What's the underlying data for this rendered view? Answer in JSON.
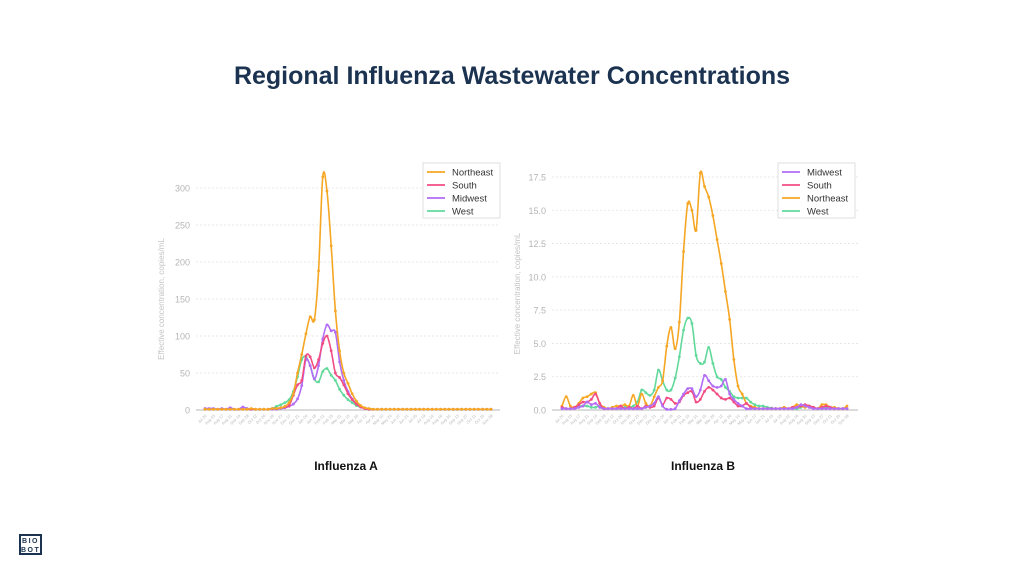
{
  "page_title": "Regional Influenza Wastewater Concentrations",
  "logo": {
    "line1": "BIO",
    "line2": "BOT"
  },
  "colors": {
    "Northeast": "#f5a623",
    "South": "#f24d83",
    "Midwest": "#b36cf5",
    "West": "#62d99b"
  },
  "chart_data": [
    {
      "type": "line",
      "title": "Influenza A",
      "xlabel": "",
      "ylabel": "Effective concentration, copies/mL",
      "ylim": [
        0,
        300
      ],
      "yticks": [
        0,
        50,
        100,
        150,
        200,
        250,
        300
      ],
      "grid": true,
      "legend_position": "top-right",
      "xticks": [
        "Jul 20",
        "Aug 03",
        "Aug 17",
        "Aug 31",
        "Sep 14",
        "Sep 28",
        "Oct 12",
        "Oct 26",
        "Nov 09",
        "Nov 23",
        "Dec 07",
        "Dec 21",
        "Jan 04",
        "Jan 18",
        "Feb 01",
        "Feb 15",
        "Mar 01",
        "Mar 15",
        "Mar 29",
        "Apr 12",
        "Apr 26",
        "May 10",
        "May 24",
        "Jun 07",
        "Jun 21",
        "Jul 05",
        "Jul 19",
        "Aug 02",
        "Aug 16",
        "Aug 30",
        "Sep 13",
        "Sep 27",
        "Oct 11",
        "Oct 25",
        "Nov 08"
      ],
      "x_note": "weekly samples starting Jul 20",
      "series": [
        {
          "name": "Northeast",
          "values": [
            1,
            1,
            1,
            1,
            1,
            1,
            1,
            1,
            1,
            1,
            1,
            2,
            1,
            1,
            1,
            1,
            2,
            2,
            3,
            5,
            10,
            22,
            50,
            75,
            103,
            126,
            122,
            188,
            315,
            296,
            222,
            134,
            80,
            50,
            36,
            22,
            12,
            6,
            3,
            2,
            1,
            1,
            1,
            1,
            1,
            1,
            1,
            1,
            1,
            1,
            1,
            1,
            1,
            1,
            1,
            1,
            1,
            1,
            1,
            1,
            1,
            1,
            1,
            1,
            1,
            1,
            1,
            1,
            1
          ]
        },
        {
          "name": "South",
          "values": [
            1,
            1,
            1,
            1,
            1,
            1,
            1,
            1,
            1,
            1,
            1,
            1,
            1,
            1,
            1,
            1,
            2,
            2,
            3,
            4,
            6,
            20,
            34,
            40,
            73,
            72,
            57,
            68,
            90,
            100,
            80,
            50,
            44,
            34,
            22,
            14,
            8,
            4,
            2,
            1,
            1,
            1,
            1,
            1,
            1,
            1,
            1,
            1,
            1,
            1,
            1,
            1,
            1,
            1,
            1,
            1,
            1,
            1,
            1,
            1,
            1,
            1,
            1,
            1,
            1,
            1,
            1,
            1,
            1
          ]
        },
        {
          "name": "Midwest",
          "values": [
            2,
            2,
            2,
            1,
            2,
            1,
            3,
            1,
            1,
            4,
            2,
            1,
            1,
            1,
            1,
            1,
            1,
            1,
            2,
            3,
            5,
            8,
            15,
            33,
            68,
            60,
            42,
            60,
            96,
            115,
            107,
            105,
            65,
            40,
            25,
            15,
            9,
            5,
            2,
            1,
            1,
            1,
            1,
            1,
            1,
            1,
            1,
            1,
            1,
            1,
            1,
            1,
            1,
            1,
            1,
            1,
            1,
            1,
            1,
            1,
            1,
            1,
            1,
            1,
            1,
            1,
            1,
            1,
            1
          ]
        },
        {
          "name": "West",
          "values": [
            1,
            1,
            1,
            1,
            1,
            1,
            1,
            1,
            1,
            1,
            1,
            1,
            1,
            1,
            1,
            1,
            2,
            5,
            7,
            10,
            14,
            25,
            45,
            68,
            72,
            60,
            42,
            38,
            52,
            56,
            47,
            40,
            28,
            20,
            14,
            10,
            6,
            4,
            2,
            1,
            1,
            1,
            1,
            1,
            1,
            1,
            1,
            1,
            1,
            1,
            1,
            1,
            1,
            1,
            1,
            1,
            1,
            1,
            1,
            1,
            1,
            1,
            1,
            1,
            1,
            1,
            1,
            1,
            1
          ]
        }
      ]
    },
    {
      "type": "line",
      "title": "Influenza B",
      "xlabel": "",
      "ylabel": "Effective concentration, copies/mL",
      "ylim": [
        0,
        17.5
      ],
      "yticks": [
        "0.0",
        "2.5",
        "5.0",
        "7.5",
        "10.0",
        "12.5",
        "15.0",
        "17.5"
      ],
      "grid": true,
      "legend_position": "top-right",
      "xticks": [
        "Jul 20",
        "Aug 03",
        "Aug 17",
        "Aug 31",
        "Sep 14",
        "Sep 28",
        "Oct 12",
        "Oct 26",
        "Nov 09",
        "Nov 23",
        "Dec 07",
        "Dec 21",
        "Jan 04",
        "Jan 18",
        "Feb 01",
        "Feb 15",
        "Mar 01",
        "Mar 15",
        "Mar 29",
        "Apr 12",
        "Apr 26",
        "May 10",
        "May 24",
        "Jun 07",
        "Jun 21",
        "Jul 05",
        "Jul 19",
        "Aug 02",
        "Aug 16",
        "Aug 30",
        "Sep 13",
        "Sep 27",
        "Oct 11",
        "Oct 25",
        "Nov 08"
      ],
      "x_note": "weekly samples starting Jul 20",
      "series": [
        {
          "name": "Midwest",
          "values": [
            0.1,
            0.1,
            0.1,
            0.1,
            0.2,
            0.3,
            0.6,
            0.4,
            0.5,
            0.2,
            0.1,
            0.1,
            0.1,
            0.1,
            0.1,
            0.1,
            0.1,
            0.1,
            0.1,
            0.1,
            0.2,
            0.3,
            0.5,
            1.0,
            0.3,
            0.05,
            0.05,
            0.1,
            0.7,
            1.2,
            1.6,
            1.6,
            1.0,
            1.5,
            2.6,
            2.2,
            1.8,
            1.7,
            1.8,
            2.3,
            1.2,
            0.8,
            0.5,
            0.3,
            0.1,
            0.1,
            0.1,
            0.1,
            0.1,
            0.1,
            0.1,
            0.1,
            0.1,
            0.1,
            0.1,
            0.1,
            0.2,
            0.4,
            0.3,
            0.2,
            0.1,
            0.1,
            0.1,
            0.1,
            0.1,
            0.1,
            0.1,
            0.1,
            0.1
          ]
        },
        {
          "name": "South",
          "values": [
            0.2,
            0.1,
            0.1,
            0.2,
            0.4,
            0.6,
            0.6,
            0.8,
            1.2,
            0.5,
            0.1,
            0.1,
            0.1,
            0.1,
            0.3,
            0.1,
            0.2,
            0.1,
            0.3,
            0.1,
            0.3,
            0.2,
            0.3,
            0.9,
            0.4,
            0.9,
            0.8,
            0.5,
            0.6,
            1.1,
            1.3,
            1.4,
            0.6,
            0.8,
            1.4,
            1.7,
            1.5,
            1.2,
            0.9,
            0.8,
            0.9,
            0.6,
            0.3,
            0.3,
            0.5,
            0.2,
            0.1,
            0.1,
            0.1,
            0.1,
            0.1,
            0.1,
            0.1,
            0.1,
            0.1,
            0.2,
            0.2,
            0.3,
            0.4,
            0.3,
            0.2,
            0.1,
            0.2,
            0.3,
            0.2,
            0.1,
            0.1,
            0.1,
            0.1
          ]
        },
        {
          "name": "Northeast",
          "values": [
            0.3,
            1.0,
            0.3,
            0.2,
            0.5,
            0.9,
            1.0,
            1.2,
            1.3,
            0.5,
            0.2,
            0.1,
            0.2,
            0.3,
            0.3,
            0.4,
            0.3,
            1.1,
            0.3,
            1.2,
            0.5,
            0.3,
            1.0,
            1.7,
            2.2,
            4.8,
            6.2,
            4.6,
            6.6,
            11.9,
            15.5,
            15.0,
            13.5,
            17.8,
            16.8,
            16.0,
            14.6,
            12.8,
            11.0,
            8.9,
            6.8,
            3.8,
            1.8,
            1.2,
            0.5,
            0.3,
            0.2,
            0.1,
            0.1,
            0.1,
            0.1,
            0.1,
            0.1,
            0.2,
            0.1,
            0.2,
            0.4,
            0.3,
            0.2,
            0.3,
            0.2,
            0.1,
            0.4,
            0.4,
            0.2,
            0.2,
            0.1,
            0.1,
            0.3
          ]
        },
        {
          "name": "West",
          "values": [
            0.1,
            0.1,
            0.1,
            0.2,
            0.3,
            0.3,
            0.3,
            0.2,
            0.2,
            0.3,
            0.2,
            0.1,
            0.1,
            0.1,
            0.1,
            0.2,
            0.2,
            0.3,
            0.6,
            1.5,
            1.3,
            1.1,
            1.5,
            3.0,
            2.2,
            1.5,
            1.5,
            2.4,
            4.0,
            6.0,
            6.9,
            6.5,
            4.1,
            3.5,
            3.6,
            4.7,
            3.5,
            2.5,
            2.3,
            1.7,
            1.4,
            1.0,
            0.9,
            0.9,
            0.9,
            0.6,
            0.4,
            0.3,
            0.3,
            0.2,
            0.15,
            0.1,
            0.1,
            0.1,
            0.1,
            0.1,
            0.1,
            0.2,
            0.3,
            0.3,
            0.2,
            0.1,
            0.1,
            0.2,
            0.2,
            0.1,
            0.1,
            0.1,
            0.1
          ]
        }
      ]
    }
  ]
}
